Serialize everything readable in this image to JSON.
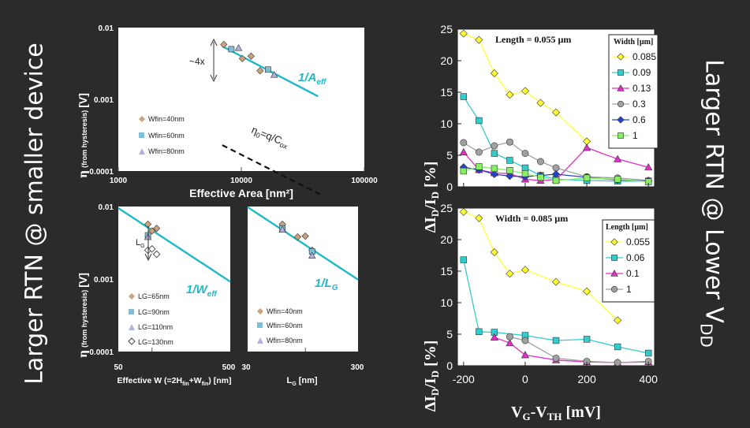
{
  "left_title": "Larger RTN @ smaller device",
  "right_title": {
    "main": "Larger RTN @ Lower V",
    "sub": "DD"
  },
  "top_left": {
    "y_ticks": [
      "0.01",
      "0.001",
      "0.0001"
    ],
    "x_ticks": [
      "1000",
      "10000",
      "100000"
    ],
    "xlabel": "Effective Area [nm²]",
    "ylabel_main": "η",
    "ylabel_rest": "(from hysteresis) [V]",
    "annot_4x": "~4x",
    "fit_label": {
      "main": "1/A",
      "sub": "eff"
    },
    "eta_label": {
      "a": "η",
      "b": "0",
      "c": "=q/C",
      "d": "ox"
    },
    "legend": [
      "Wfin=40nm",
      "Wfin=60nm",
      "Wfin=80nm"
    ]
  },
  "bottom_left": {
    "y_ticks": [
      "0.01",
      "0.001",
      "0.0001"
    ],
    "x_ticks": [
      "50",
      "500"
    ],
    "xlabel": {
      "a": "Effective W (=2H",
      "b": "fin",
      "c": "+W",
      "d": "fin",
      "e": ") [nm]"
    },
    "ylabel_main": "η",
    "ylabel_rest": "(from hysteresis) [V]",
    "annot_lg": {
      "main": "L",
      "sub": "G"
    },
    "fit_label": {
      "main": "1/W",
      "sub": "eff"
    },
    "legend": [
      "LG=65nm",
      "LG=90nm",
      "LG=110nm",
      "LG=130nm"
    ]
  },
  "bottom_mid": {
    "x_ticks": [
      "30",
      "300"
    ],
    "xlabel": {
      "main": "L",
      "sub": "G",
      "rest": " [nm]"
    },
    "fit_label": {
      "main": "1/L",
      "sub": "G"
    },
    "legend": [
      "Wfin=40nm",
      "Wfin=60nm",
      "Wfin=80nm"
    ]
  },
  "right_common": {
    "y_ticks": [
      "0",
      "5",
      "10",
      "15",
      "20",
      "25"
    ],
    "x_ticks": [
      "-200",
      "0",
      "200",
      "400"
    ],
    "ylabel": "ΔI_D/I_D [%]",
    "xlabel": {
      "a": "V",
      "b": "G",
      "c": "-V",
      "d": "TH",
      "e": " [mV]"
    }
  },
  "right_top": {
    "annotation": "Length = 0.055 µm",
    "legend_title": "Width [µm]"
  },
  "right_bottom": {
    "annotation": "Width = 0.085 µm",
    "legend_title": "Length [µm]"
  },
  "chart_data": [
    {
      "type": "scatter",
      "xlabel": "Effective Area [nm²]",
      "ylabel": "η (from hysteresis) [V]",
      "x_scale": "log",
      "y_scale": "log",
      "xlim": [
        1000,
        100000
      ],
      "ylim": [
        0.0001,
        0.01
      ],
      "series": [
        {
          "name": "Wfin=40nm",
          "marker": "diamond",
          "color": "#c9a27e",
          "points": [
            [
              7200,
              0.0058
            ],
            [
              10200,
              0.0037
            ],
            [
              12000,
              0.004
            ],
            [
              14200,
              0.0025
            ]
          ]
        },
        {
          "name": "Wfin=60nm",
          "marker": "square",
          "color": "#7fbfd6",
          "points": [
            [
              8300,
              0.005
            ],
            [
              16500,
              0.0026
            ]
          ]
        },
        {
          "name": "Wfin=80nm",
          "marker": "triangle",
          "color": "#b0b3e0",
          "points": [
            [
              9500,
              0.0052
            ],
            [
              18500,
              0.0022
            ]
          ]
        }
      ],
      "fit_line": {
        "label": "1/Aeff",
        "color": "#1fb8c8",
        "points": [
          [
            7000,
            0.0055
          ],
          [
            42000,
            0.0011
          ]
        ]
      },
      "reference_line": {
        "label": "η0=q/Cox",
        "style": "dashed",
        "color": "#ffffff",
        "points": [
          [
            7000,
            0.00023
          ],
          [
            45000,
            4.6e-05
          ]
        ]
      }
    },
    {
      "type": "scatter",
      "xlabel": "Effective W (=2Hfin+Wfin) [nm]",
      "ylabel": "η (from hysteresis) [V]",
      "x_scale": "log",
      "y_scale": "log",
      "xlim": [
        50,
        500
      ],
      "ylim": [
        0.0001,
        0.01
      ],
      "series": [
        {
          "name": "LG=65nm",
          "marker": "diamond",
          "color": "#c9a27e",
          "points": [
            [
              92,
              0.0057
            ],
            [
              100,
              0.0046
            ],
            [
              110,
              0.005
            ]
          ]
        },
        {
          "name": "LG=90nm",
          "marker": "square",
          "color": "#7fbfd6",
          "points": [
            [
              92,
              0.004
            ]
          ]
        },
        {
          "name": "LG=110nm",
          "marker": "triangle",
          "color": "#b0b3e0",
          "points": [
            [
              92,
              0.0038
            ]
          ]
        },
        {
          "name": "LG=130nm",
          "marker": "diamond-open",
          "color": "#ffffff",
          "points": [
            [
              92,
              0.0025
            ],
            [
              100,
              0.0026
            ],
            [
              110,
              0.0022
            ]
          ]
        }
      ],
      "fit_line": {
        "label": "1/Weff",
        "color": "#1fb8c8",
        "points": [
          [
            50,
            0.0095
          ],
          [
            500,
            0.00092
          ]
        ]
      }
    },
    {
      "type": "scatter",
      "xlabel": "LG [nm]",
      "x_scale": "log",
      "y_scale": "log",
      "xlim": [
        30,
        300
      ],
      "ylim": [
        0.0001,
        0.01
      ],
      "series": [
        {
          "name": "Wfin=40nm",
          "marker": "diamond",
          "color": "#c9a27e",
          "points": [
            [
              62,
              0.0057
            ],
            [
              85,
              0.0038
            ],
            [
              100,
              0.0039
            ],
            [
              115,
              0.0025
            ]
          ]
        },
        {
          "name": "Wfin=60nm",
          "marker": "square",
          "color": "#7fbfd6",
          "points": [
            [
              62,
              0.005
            ],
            [
              115,
              0.0024
            ]
          ]
        },
        {
          "name": "Wfin=80nm",
          "marker": "triangle",
          "color": "#b0b3e0",
          "points": [
            [
              62,
              0.0048
            ],
            [
              115,
              0.0021
            ]
          ]
        }
      ],
      "fit_line": {
        "label": "1/LG",
        "color": "#1fb8c8",
        "points": [
          [
            30,
            0.0098
          ],
          [
            300,
            0.00098
          ]
        ]
      }
    },
    {
      "type": "line",
      "xlabel": "VG-VTH [mV]",
      "ylabel": "ΔID/ID [%]",
      "xlim": [
        -220,
        420
      ],
      "ylim": [
        0,
        25
      ],
      "legend_title": "Width [µm]",
      "series": [
        {
          "name": "0.085",
          "marker": "diamond",
          "color": "#ffff33",
          "points": [
            [
              -200,
              24.3
            ],
            [
              -150,
              23.3
            ],
            [
              -100,
              18
            ],
            [
              -50,
              14.6
            ],
            [
              0,
              15.2
            ],
            [
              50,
              13.3
            ],
            [
              100,
              11.8
            ],
            [
              200,
              7.2
            ],
            [
              300,
              null
            ],
            [
              400,
              null
            ]
          ]
        },
        {
          "name": "0.09",
          "marker": "square",
          "color": "#33cccc",
          "points": [
            [
              -200,
              14.3
            ],
            [
              -150,
              10.5
            ],
            [
              -100,
              5.3
            ],
            [
              -50,
              4.2
            ],
            [
              0,
              3.0
            ],
            [
              50,
              1.8
            ],
            [
              100,
              1.2
            ],
            [
              200,
              1.0
            ],
            [
              300,
              0.9
            ],
            [
              400,
              0.9
            ]
          ]
        },
        {
          "name": "0.13",
          "marker": "triangle",
          "color": "#e030c8",
          "points": [
            [
              -200,
              5.5
            ],
            [
              -150,
              2.7
            ],
            [
              -100,
              2.2
            ],
            [
              -50,
              2.1
            ],
            [
              0,
              1.2
            ],
            [
              50,
              1.0
            ],
            [
              100,
              1.1
            ],
            [
              200,
              6.2
            ],
            [
              300,
              4.4
            ],
            [
              400,
              3.1
            ]
          ]
        },
        {
          "name": "0.3",
          "marker": "circle",
          "color": "#a0a0a0",
          "points": [
            [
              -200,
              7.0
            ],
            [
              -150,
              5.5
            ],
            [
              -100,
              6.5
            ],
            [
              -50,
              7.1
            ],
            [
              0,
              5.3
            ],
            [
              50,
              4.0
            ],
            [
              100,
              3.0
            ],
            [
              200,
              1.6
            ],
            [
              300,
              1.4
            ],
            [
              400,
              1.0
            ]
          ]
        },
        {
          "name": "0.6",
          "marker": "diamond",
          "color": "#2244cc",
          "points": [
            [
              -200,
              3.1
            ],
            [
              -150,
              2.7
            ],
            [
              -100,
              2.0
            ],
            [
              -50,
              1.7
            ],
            [
              0,
              1.6
            ],
            [
              50,
              1.8
            ],
            [
              100,
              2.0
            ],
            [
              200,
              1.5
            ],
            [
              300,
              1.1
            ],
            [
              400,
              0.9
            ]
          ]
        },
        {
          "name": "1",
          "marker": "square",
          "color": "#88ee66",
          "points": [
            [
              -200,
              2.5
            ],
            [
              -150,
              3.2
            ],
            [
              -100,
              2.9
            ],
            [
              -50,
              2.6
            ],
            [
              0,
              2.1
            ],
            [
              50,
              1.5
            ],
            [
              100,
              1.0
            ],
            [
              200,
              1.4
            ],
            [
              300,
              1.2
            ],
            [
              400,
              0.8
            ]
          ]
        }
      ]
    },
    {
      "type": "line",
      "xlabel": "VG-VTH [mV]",
      "ylabel": "ΔID/ID [%]",
      "xlim": [
        -220,
        420
      ],
      "ylim": [
        0,
        25
      ],
      "legend_title": "Length [µm]",
      "series": [
        {
          "name": "0.055",
          "marker": "diamond",
          "color": "#ffff33",
          "points": [
            [
              -200,
              24.4
            ],
            [
              -150,
              23.4
            ],
            [
              -100,
              18
            ],
            [
              -50,
              14.6
            ],
            [
              0,
              15.2
            ],
            [
              100,
              13.3
            ],
            [
              200,
              11.8
            ],
            [
              300,
              7.2
            ]
          ]
        },
        {
          "name": "0.06",
          "marker": "square",
          "color": "#33cccc",
          "points": [
            [
              -200,
              16.8
            ],
            [
              -150,
              5.4
            ],
            [
              -100,
              5.3
            ],
            [
              0,
              4.8
            ],
            [
              100,
              4.0
            ],
            [
              200,
              4.2
            ],
            [
              300,
              3.0
            ],
            [
              400,
              2.0
            ]
          ]
        },
        {
          "name": "0.1",
          "marker": "triangle",
          "color": "#e030c8",
          "points": [
            [
              -100,
              4.5
            ],
            [
              -50,
              3.6
            ],
            [
              0,
              1.7
            ],
            [
              100,
              0.9
            ],
            [
              200,
              0.6
            ],
            [
              300,
              0.5
            ],
            [
              400,
              0.6
            ]
          ]
        },
        {
          "name": "1",
          "marker": "circle",
          "color": "#a0a0a0",
          "points": [
            [
              -50,
              4.6
            ],
            [
              0,
              4.0
            ],
            [
              100,
              1.2
            ],
            [
              200,
              0.7
            ],
            [
              300,
              0.5
            ],
            [
              400,
              0.7
            ]
          ]
        }
      ]
    }
  ]
}
